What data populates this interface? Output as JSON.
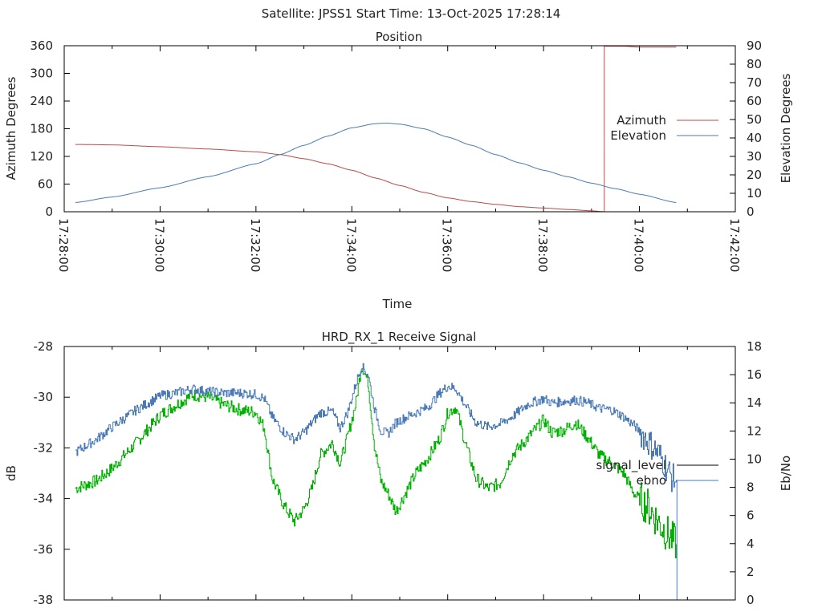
{
  "page_title": "Satellite: JPSS1    Start Time: 13-Oct-2025 17:28:14",
  "colors": {
    "azimuth": "#b94a48",
    "elevation": "#4a7ab5",
    "signal": "#00b000",
    "signal_legend": "#000000",
    "ebno": "#4a7ab5",
    "axis": "#000000"
  },
  "chart_data": [
    {
      "type": "line",
      "title": "Position",
      "xlabel": "Time",
      "ylabel": "Azimuth Degrees",
      "y2label": "Elevation Degrees",
      "xlim": [
        "17:28:00",
        "17:42:00"
      ],
      "ylim": [
        0,
        360
      ],
      "y2lim": [
        0,
        90
      ],
      "x_ticks": [
        "17:28:00",
        "17:30:00",
        "17:32:00",
        "17:34:00",
        "17:36:00",
        "17:38:00",
        "17:40:00",
        "17:42:00"
      ],
      "y_ticks": [
        "0",
        "60",
        "120",
        "180",
        "240",
        "300",
        "360"
      ],
      "y2_ticks": [
        "0",
        "10",
        "20",
        "30",
        "40",
        "50",
        "60",
        "70",
        "80",
        "90"
      ],
      "legend": [
        "Azimuth",
        "Elevation"
      ],
      "legend_position": "right",
      "series": [
        {
          "name": "Azimuth",
          "axis": "y",
          "x": [
            "17:28:14",
            "17:29:00",
            "17:30:00",
            "17:31:00",
            "17:32:00",
            "17:32:30",
            "17:33:00",
            "17:33:30",
            "17:34:00",
            "17:34:30",
            "17:35:00",
            "17:35:30",
            "17:36:00",
            "17:36:30",
            "17:37:00",
            "17:37:30",
            "17:38:00",
            "17:38:30",
            "17:39:00",
            "17:39:16",
            "17:39:17",
            "17:39:40",
            "17:40:00",
            "17:40:46"
          ],
          "y": [
            146,
            145,
            141,
            136,
            130,
            124,
            115,
            104,
            90,
            73,
            57,
            42,
            30,
            22,
            16,
            11,
            8,
            5,
            2,
            0,
            359,
            359,
            357,
            357
          ]
        },
        {
          "name": "Elevation",
          "axis": "y2",
          "x": [
            "17:28:14",
            "17:29:00",
            "17:30:00",
            "17:31:00",
            "17:32:00",
            "17:32:30",
            "17:33:00",
            "17:33:30",
            "17:34:00",
            "17:34:30",
            "17:34:45",
            "17:35:00",
            "17:35:30",
            "17:36:00",
            "17:36:30",
            "17:37:00",
            "17:37:30",
            "17:38:00",
            "17:38:30",
            "17:39:00",
            "17:39:30",
            "17:40:00",
            "17:40:46"
          ],
          "y": [
            5,
            8,
            13,
            19,
            26,
            31,
            36,
            41,
            45.5,
            47.8,
            48,
            47.5,
            45,
            40.5,
            36,
            31,
            26.5,
            22.5,
            19,
            15.5,
            12.5,
            9.5,
            5
          ]
        }
      ]
    },
    {
      "type": "line",
      "title": "HRD_RX_1 Receive Signal",
      "xlabel": "",
      "ylabel": "dB",
      "y2label": "Eb/No",
      "xlim": [
        "17:28:00",
        "17:42:00"
      ],
      "ylim": [
        -38,
        -28
      ],
      "y2lim": [
        0,
        18
      ],
      "y_ticks": [
        "-28",
        "-30",
        "-32",
        "-34",
        "-36",
        "-38"
      ],
      "y2_ticks": [
        "0",
        "2",
        "4",
        "6",
        "8",
        "10",
        "12",
        "14",
        "16",
        "18"
      ],
      "legend": [
        "signal_level",
        "ebno"
      ],
      "legend_position": "right",
      "series": [
        {
          "name": "signal_level",
          "axis": "y",
          "x": [
            "17:28:14",
            "17:28:40",
            "17:29:00",
            "17:29:30",
            "17:30:00",
            "17:30:20",
            "17:30:40",
            "17:31:00",
            "17:31:20",
            "17:31:40",
            "17:32:00",
            "17:32:10",
            "17:32:20",
            "17:32:35",
            "17:32:48",
            "17:33:00",
            "17:33:10",
            "17:33:20",
            "17:33:35",
            "17:33:45",
            "17:33:55",
            "17:34:05",
            "17:34:12",
            "17:34:20",
            "17:34:28",
            "17:34:36",
            "17:34:45",
            "17:34:55",
            "17:35:05",
            "17:35:20",
            "17:35:35",
            "17:35:50",
            "17:36:00",
            "17:36:10",
            "17:36:20",
            "17:36:35",
            "17:36:50",
            "17:37:05",
            "17:37:20",
            "17:37:40",
            "17:38:00",
            "17:38:10",
            "17:38:25",
            "17:38:40",
            "17:38:55",
            "17:39:10",
            "17:39:25",
            "17:39:40",
            "17:39:55",
            "17:40:10",
            "17:40:25",
            "17:40:40",
            "17:40:46"
          ],
          "y": [
            -33.6,
            -33.3,
            -32.8,
            -31.8,
            -30.7,
            -30.3,
            -29.9,
            -30.0,
            -30.3,
            -30.5,
            -30.6,
            -31.2,
            -33.2,
            -34.3,
            -34.9,
            -34.4,
            -33.6,
            -32.3,
            -31.8,
            -32.6,
            -31.5,
            -30.2,
            -28.7,
            -29.4,
            -31.9,
            -33.3,
            -33.8,
            -34.5,
            -33.9,
            -33.0,
            -32.4,
            -31.6,
            -30.6,
            -30.4,
            -31.6,
            -33.2,
            -33.6,
            -33.4,
            -32.3,
            -31.6,
            -30.9,
            -31.4,
            -31.3,
            -31.0,
            -31.6,
            -32.3,
            -32.6,
            -33.0,
            -33.9,
            -34.3,
            -35.0,
            -35.6,
            -35.8
          ]
        },
        {
          "name": "ebno",
          "axis": "y2",
          "x": [
            "17:28:14",
            "17:28:40",
            "17:29:00",
            "17:29:30",
            "17:30:00",
            "17:30:20",
            "17:30:40",
            "17:31:00",
            "17:31:20",
            "17:31:40",
            "17:32:00",
            "17:32:10",
            "17:32:20",
            "17:32:35",
            "17:32:48",
            "17:33:00",
            "17:33:10",
            "17:33:20",
            "17:33:35",
            "17:33:45",
            "17:33:55",
            "17:34:05",
            "17:34:12",
            "17:34:20",
            "17:34:28",
            "17:34:36",
            "17:34:45",
            "17:34:55",
            "17:35:05",
            "17:35:20",
            "17:35:35",
            "17:35:50",
            "17:36:00",
            "17:36:10",
            "17:36:20",
            "17:36:35",
            "17:36:50",
            "17:37:05",
            "17:37:20",
            "17:37:40",
            "17:38:00",
            "17:38:10",
            "17:38:25",
            "17:38:40",
            "17:38:55",
            "17:39:10",
            "17:39:25",
            "17:39:40",
            "17:39:55",
            "17:40:10",
            "17:40:25",
            "17:40:40",
            "17:40:46",
            "17:40:47"
          ],
          "y": [
            10.5,
            11.4,
            12.3,
            13.5,
            14.5,
            14.7,
            15.0,
            14.8,
            14.7,
            14.7,
            14.6,
            14.3,
            13.0,
            11.9,
            11.4,
            11.9,
            12.6,
            13.3,
            13.4,
            12.2,
            13.4,
            15.4,
            16.6,
            16.0,
            13.6,
            12.0,
            11.8,
            12.6,
            12.9,
            13.3,
            13.7,
            14.7,
            15.2,
            15.0,
            14.0,
            12.6,
            12.3,
            12.5,
            13.0,
            13.9,
            14.3,
            14.0,
            14.1,
            14.2,
            14.0,
            13.6,
            13.5,
            13.0,
            12.3,
            11.3,
            10.3,
            8.7,
            8.5,
            0
          ]
        }
      ]
    }
  ]
}
